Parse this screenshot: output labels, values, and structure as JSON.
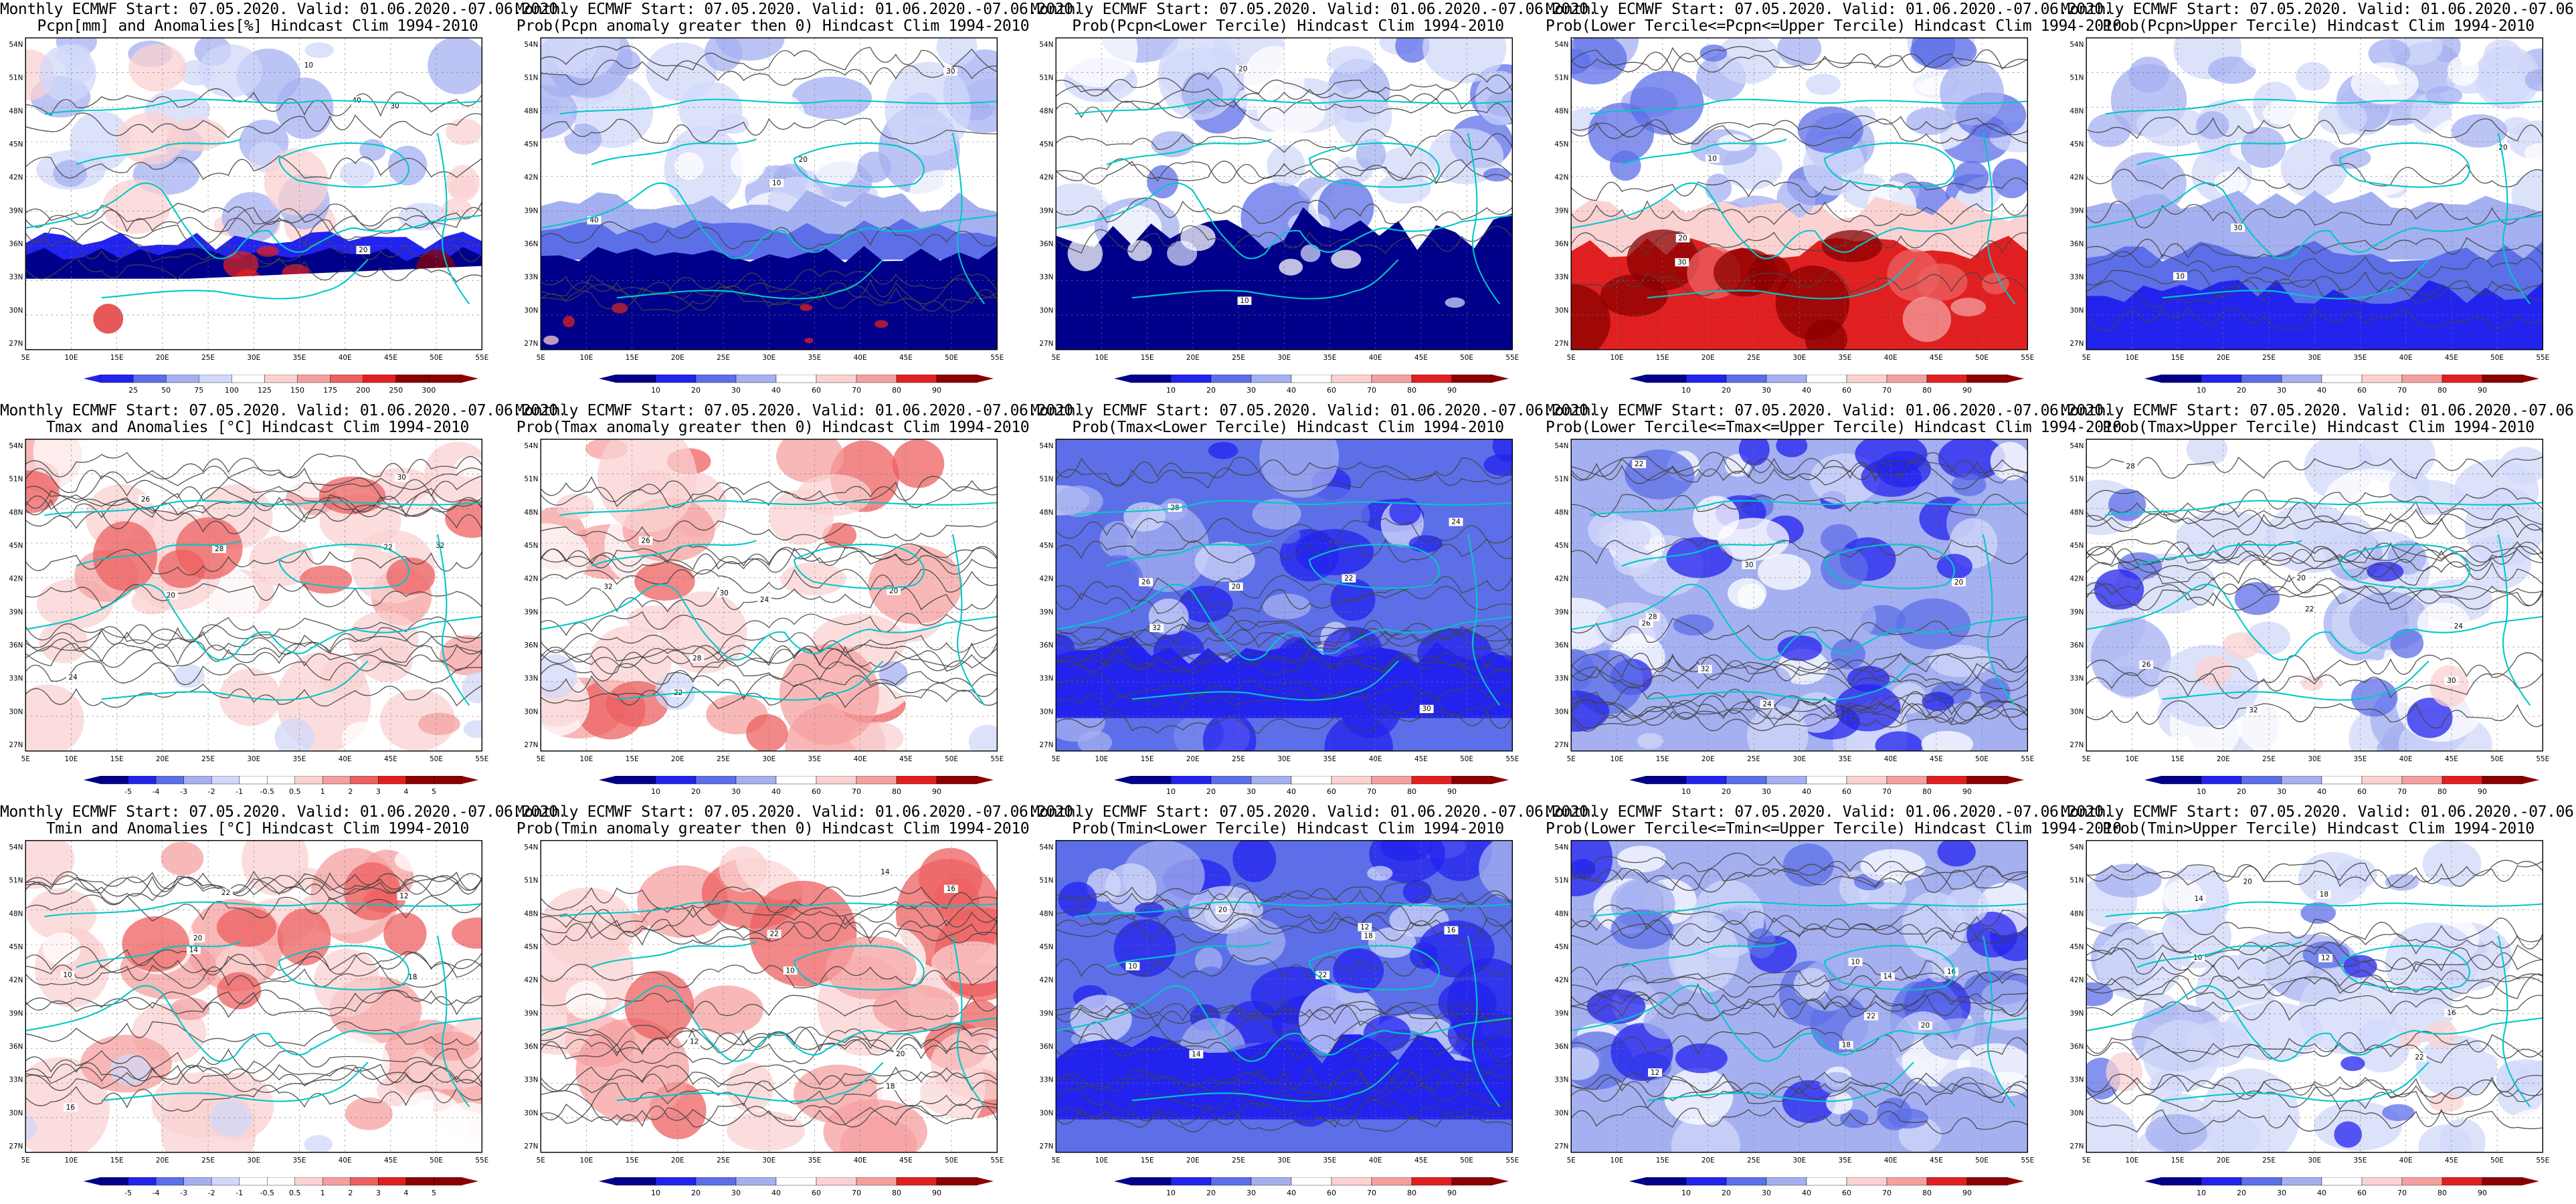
{
  "common_line1": "Monthly ECMWF Start: 07.05.2020. Valid: 01.06.2020.-07.06.2020.",
  "lat_labels": [
    "54N",
    "51N",
    "48N",
    "45N",
    "42N",
    "39N",
    "36N",
    "33N",
    "30N",
    "27N"
  ],
  "lon_labels": [
    "5E",
    "10E",
    "15E",
    "20E",
    "25E",
    "30E",
    "35E",
    "40E",
    "45E",
    "50E",
    "55E"
  ],
  "colorbars": {
    "pcpn": [
      "25",
      "50",
      "75",
      "100",
      "125",
      "150",
      "175",
      "200",
      "250",
      "300"
    ],
    "temp": [
      "-5",
      "-4",
      "-3",
      "-2",
      "-1",
      "-0.5",
      "0.5",
      "1",
      "2",
      "3",
      "4",
      "5"
    ],
    "prob": [
      "10",
      "20",
      "30",
      "40",
      "60",
      "70",
      "80",
      "90"
    ]
  },
  "colors": {
    "deep_blue": "#00008b",
    "blue": "#2323ee",
    "mid_blue": "#5c6fe8",
    "light_blue": "#a4b0f0",
    "pale_blue": "#d2d8fa",
    "white": "#ffffff",
    "pale_red": "#fbd2d2",
    "light_red": "#f5a0a0",
    "mid_red": "#ee6060",
    "red": "#e02020",
    "dark_red": "#8b0000",
    "coast": "#00c8c8",
    "contour": "#444444"
  },
  "panels": [
    {
      "id": "p1",
      "row": 0,
      "col": 0,
      "line2": "Pcpn[mm] and Anomalies[%] Hindcast Clim 1994-2010",
      "bar": "pcpn",
      "style": "pcpn",
      "contours": [
        "10",
        "20",
        "30",
        "40"
      ]
    },
    {
      "id": "p2",
      "row": 0,
      "col": 1,
      "line2": "Prob(Pcpn anomaly greater then 0) Hindcast Clim 1994-2010",
      "bar": "prob",
      "style": "pcpnprob",
      "contours": [
        "10",
        "20",
        "30",
        "40"
      ]
    },
    {
      "id": "p3",
      "row": 0,
      "col": 2,
      "line2": "Prob(Pcpn<Lower Tercile) Hindcast Clim 1994-2010",
      "bar": "prob",
      "style": "pcpnlow",
      "contours": [
        "10",
        "20"
      ]
    },
    {
      "id": "p4",
      "row": 0,
      "col": 3,
      "line2": "Prob(Lower Tercile<=Pcpn<=Upper Tercile) Hindcast Clim 1994-2010",
      "bar": "prob",
      "style": "pcpnmid",
      "contours": [
        "10",
        "20",
        "30"
      ]
    },
    {
      "id": "p5",
      "row": 0,
      "col": 4,
      "line2": "Prob(Pcpn>Upper Tercile) Hindcast Clim 1994-2010",
      "bar": "prob",
      "style": "pcpnhigh",
      "contours": [
        "10",
        "20",
        "30"
      ]
    },
    {
      "id": "p6",
      "row": 1,
      "col": 0,
      "line2": "Tmax and Anomalies [°C] Hindcast Clim 1994-2010",
      "bar": "temp",
      "style": "tanom",
      "contours": [
        "20",
        "22",
        "24",
        "26",
        "28",
        "30",
        "32"
      ]
    },
    {
      "id": "p7",
      "row": 1,
      "col": 1,
      "line2": "Prob(Tmax anomaly greater then 0) Hindcast Clim 1994-2010",
      "bar": "prob",
      "style": "tprob",
      "contours": [
        "20",
        "22",
        "24",
        "26",
        "28",
        "30",
        "32"
      ]
    },
    {
      "id": "p8",
      "row": 1,
      "col": 2,
      "line2": "Prob(Tmax<Lower Tercile) Hindcast Clim 1994-2010",
      "bar": "prob",
      "style": "tlow",
      "contours": [
        "20",
        "22",
        "24",
        "26",
        "28",
        "30",
        "32"
      ]
    },
    {
      "id": "p9",
      "row": 1,
      "col": 3,
      "line2": "Prob(Lower Tercile<=Tmax<=Upper Tercile) Hindcast Clim 1994-2010",
      "bar": "prob",
      "style": "tmid",
      "contours": [
        "20",
        "22",
        "24",
        "26",
        "28",
        "30",
        "32"
      ]
    },
    {
      "id": "p10",
      "row": 1,
      "col": 4,
      "line2": "Prob(Tmax>Upper Tercile) Hindcast Clim 1994-2010",
      "bar": "prob",
      "style": "thigh",
      "contours": [
        "20",
        "22",
        "24",
        "26",
        "28",
        "30",
        "32"
      ]
    },
    {
      "id": "p11",
      "row": 2,
      "col": 0,
      "line2": "Tmin and Anomalies [°C] Hindcast Clim 1994-2010",
      "bar": "temp",
      "style": "tanom",
      "contours": [
        "10",
        "12",
        "14",
        "16",
        "18",
        "20",
        "22"
      ]
    },
    {
      "id": "p12",
      "row": 2,
      "col": 1,
      "line2": "Prob(Tmin anomaly greater then 0) Hindcast Clim 1994-2010",
      "bar": "prob",
      "style": "tprob2",
      "contours": [
        "10",
        "12",
        "14",
        "16",
        "18",
        "20",
        "22"
      ]
    },
    {
      "id": "p13",
      "row": 2,
      "col": 2,
      "line2": "Prob(Tmin<Lower Tercile) Hindcast Clim 1994-2010",
      "bar": "prob",
      "style": "tlow",
      "contours": [
        "10",
        "12",
        "14",
        "16",
        "18",
        "20",
        "22"
      ]
    },
    {
      "id": "p14",
      "row": 2,
      "col": 3,
      "line2": "Prob(Lower Tercile<=Tmin<=Upper Tercile) Hindcast Clim 1994-2010",
      "bar": "prob",
      "style": "tmid",
      "contours": [
        "10",
        "12",
        "14",
        "16",
        "18",
        "20",
        "22"
      ]
    },
    {
      "id": "p15",
      "row": 2,
      "col": 4,
      "line2": "Prob(Tmin>Upper Tercile) Hindcast Clim 1994-2010",
      "bar": "prob",
      "style": "thigh",
      "contours": [
        "10",
        "12",
        "14",
        "16",
        "18",
        "20",
        "22"
      ]
    }
  ]
}
